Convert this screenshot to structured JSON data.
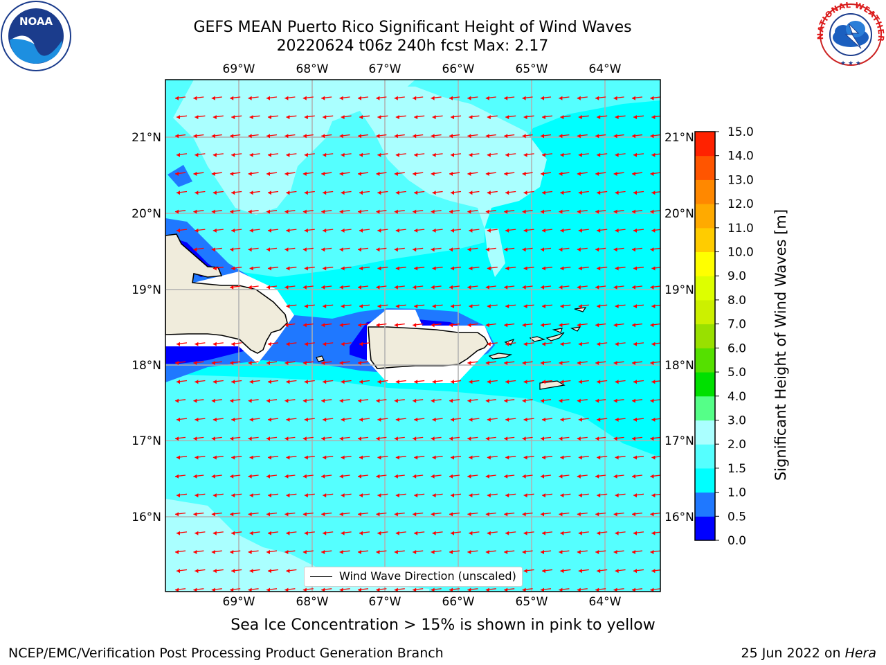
{
  "title": {
    "line1": "GEFS MEAN Puerto Rico Significant Height of Wind Waves",
    "line2": "20220624 t06z 240h fcst   Max: 2.17"
  },
  "map": {
    "lon_labels": [
      "69°W",
      "68°W",
      "67°W",
      "66°W",
      "65°W",
      "64°W"
    ],
    "lat_labels": [
      "21°N",
      "20°N",
      "19°N",
      "18°N",
      "17°N",
      "16°N"
    ],
    "legend_label": "Wind Wave Direction (unscaled)",
    "land_color": "#f0ecdc",
    "arrow_color": "#ff0000"
  },
  "colorbar": {
    "label": "Significant Height of Wind Waves [m]",
    "tick_labels": [
      "15.0",
      "14.0",
      "13.0",
      "12.0",
      "11.0",
      "10.0",
      "9.0",
      "8.0",
      "7.0",
      "6.0",
      "5.0",
      "4.0",
      "3.0",
      "2.0",
      "1.5",
      "1.0",
      "0.5",
      "0.0"
    ],
    "levels": [
      0.0,
      0.5,
      1.0,
      1.5,
      2.0,
      3.0,
      4.0,
      5.0,
      6.0,
      7.0,
      8.0,
      9.0,
      10.0,
      11.0,
      12.0,
      13.0,
      14.0,
      15.0
    ],
    "colors": [
      "#0000ff",
      "#1f78ff",
      "#00ffff",
      "#55ffff",
      "#aaffff",
      "#55ff88",
      "#00e000",
      "#55e000",
      "#99e000",
      "#ccf000",
      "#ddff00",
      "#ffff00",
      "#ffcc00",
      "#ffaa00",
      "#ff8800",
      "#ff5500",
      "#ff2200"
    ]
  },
  "logos": {
    "noaa_text": "NOAA",
    "nws_text": "NATIONAL WEATHER SERVICE"
  },
  "note": "Sea Ice Concentration > 15% is shown in pink to yellow",
  "footer": {
    "left": "NCEP/EMC/Verification Post Processing Product Generation Branch",
    "right_prefix": "25 Jun 2022 on ",
    "right_host": "Hera"
  }
}
